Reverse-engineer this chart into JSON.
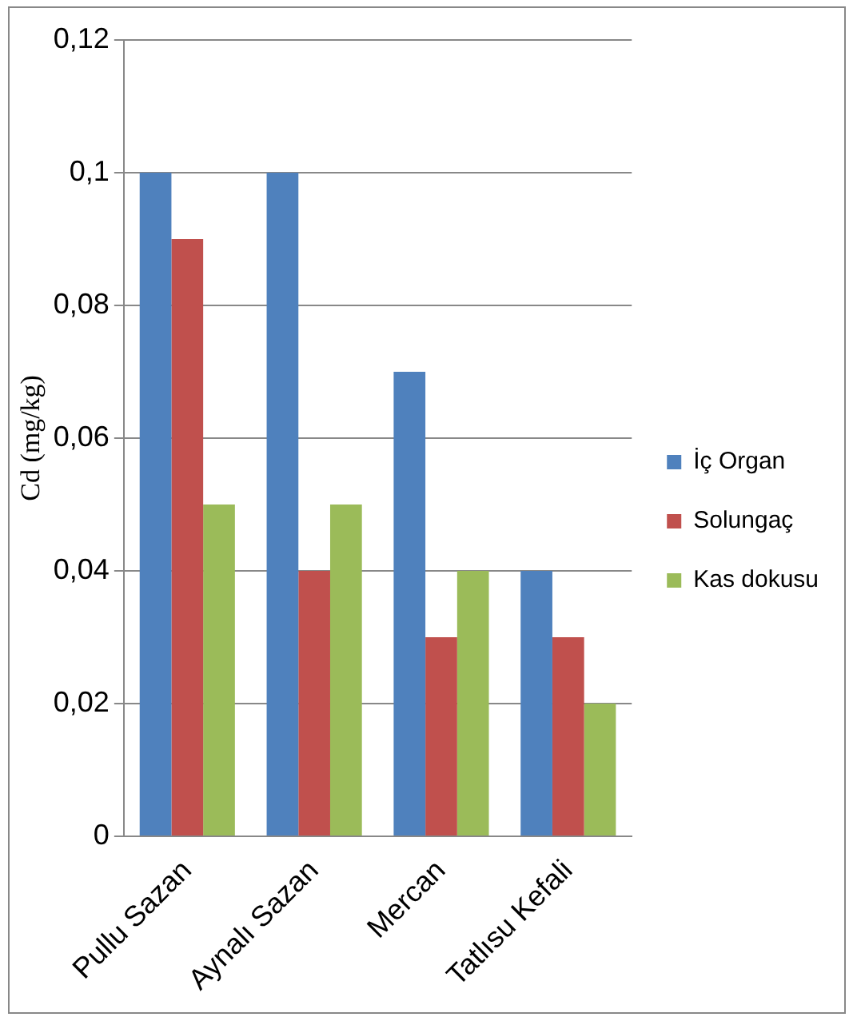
{
  "chart_data": {
    "type": "bar",
    "ylabel": "Cd (mg/kg)",
    "categories": [
      "Pullu Sazan",
      "Aynalı Sazan",
      "Mercan",
      "Tatlısu Kefali"
    ],
    "series": [
      {
        "name": "İç Organ",
        "color": "#4f81bd",
        "values": [
          0.1,
          0.1,
          0.07,
          0.04
        ]
      },
      {
        "name": "Solungaç",
        "color": "#c0504d",
        "values": [
          0.09,
          0.04,
          0.03,
          0.03
        ]
      },
      {
        "name": "Kas dokusu",
        "color": "#9bbb59",
        "values": [
          0.05,
          0.05,
          0.04,
          0.02
        ]
      }
    ],
    "ylim": [
      0,
      0.12
    ],
    "yticks": [
      {
        "value": 0,
        "label": "0"
      },
      {
        "value": 0.02,
        "label": "0,02"
      },
      {
        "value": 0.04,
        "label": "0,04"
      },
      {
        "value": 0.06,
        "label": "0,06"
      },
      {
        "value": 0.08,
        "label": "0,08"
      },
      {
        "value": 0.1,
        "label": "0,1"
      },
      {
        "value": 0.12,
        "label": "0,12"
      }
    ],
    "grid": "y",
    "legend": "right"
  }
}
